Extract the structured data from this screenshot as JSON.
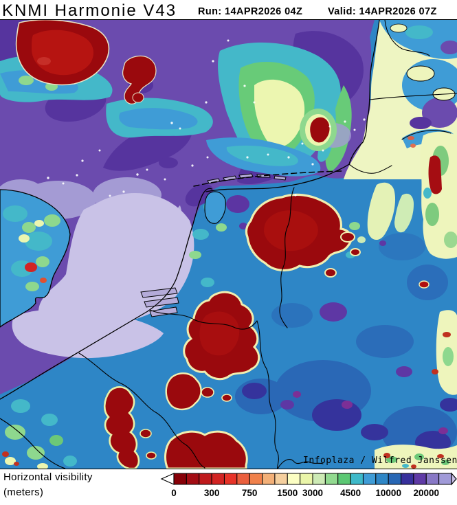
{
  "header": {
    "title": "KNMI Harmonie V43",
    "run_label": "Run:",
    "run_value": "14APR2026 04Z",
    "valid_label": "Valid:",
    "valid_value": "14APR2026 07Z",
    "run_text": "Run: 14APR2026 04Z",
    "valid_text": "Valid: 14APR2026 07Z"
  },
  "map": {
    "attribution": "Infoplaza / Wilfred Janssen"
  },
  "legend": {
    "title_line1": "Horizontal visibility",
    "title_line2": "(meters)",
    "tick_labels": [
      "0",
      "300",
      "750",
      "1500",
      "3000",
      "4500",
      "10000",
      "20000"
    ],
    "tick_cell_boundaries": [
      0,
      3,
      6,
      9,
      11,
      14,
      17,
      20
    ],
    "cell_colors": [
      "#870008",
      "#a30d14",
      "#bf1a1c",
      "#d22423",
      "#e73328",
      "#ea5f3d",
      "#f0814b",
      "#f3b078",
      "#f5cf9e",
      "#fcfec3",
      "#eaf5a9",
      "#cdeab5",
      "#92da90",
      "#5cc874",
      "#3eb9c9",
      "#3f9cd6",
      "#2e86c6",
      "#2766b4",
      "#37309c",
      "#5f3aa6",
      "#8878c6",
      "#a09ad8"
    ],
    "left_arrow_color": "#ffffff",
    "right_arrow_color": "#c9c0e6"
  }
}
